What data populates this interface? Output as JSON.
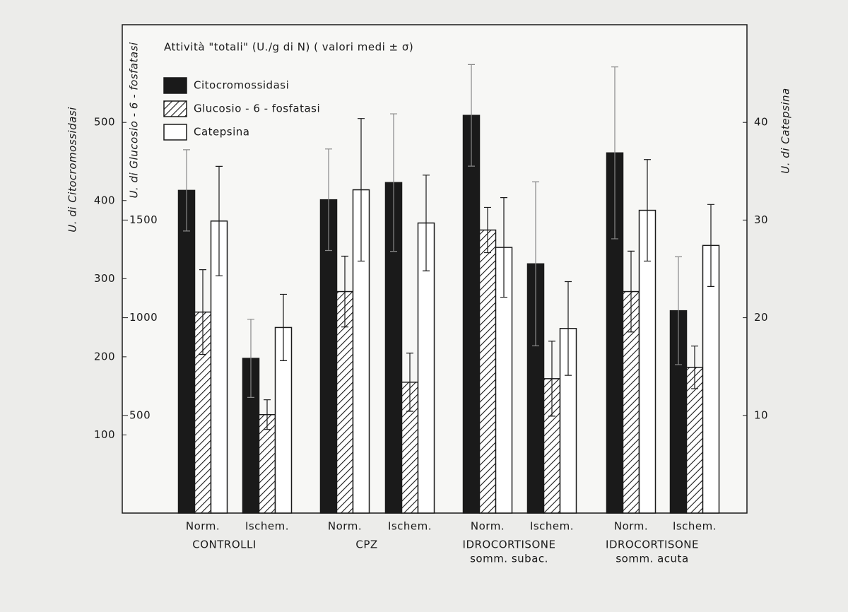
{
  "chart_data": {
    "type": "bar",
    "title": "Attività \"totali\" (U./g di N) ( valori medi ± σ)",
    "ylabel": "U. di Citocromossidasi",
    "y2label": "U. di Glucosio - 6 - fosfatasi",
    "y3label": "U. di Catepsina",
    "categories": [
      "Norm.",
      "Ischem.",
      "Norm.",
      "Ischem.",
      "Norm.",
      "Ischem.",
      "Norm.",
      "Ischem."
    ],
    "groups": [
      [
        "CONTROLLI"
      ],
      [
        "CPZ"
      ],
      [
        "IDROCORTISONE",
        "somm. subac."
      ],
      [
        "IDROCORTISONE",
        "somm. acuta"
      ]
    ],
    "series": [
      {
        "name": "Citocromossidasi",
        "color": "#1a1a1a",
        "axis": "y",
        "values": [
          413,
          198,
          401,
          423,
          509,
          319,
          461,
          259
        ],
        "errors": [
          52,
          50,
          65,
          88,
          65,
          105,
          110,
          69
        ]
      },
      {
        "name": "Glucosio - 6 - fosfatasi",
        "color": "#1a1a1a",
        "hatch": true,
        "axis": "y2",
        "values": [
          1029,
          504,
          1134,
          670,
          1449,
          688,
          1134,
          746
        ],
        "errors": [
          217,
          76,
          181,
          149,
          116,
          192,
          207,
          109
        ]
      },
      {
        "name": "Catepsina",
        "color": "#ffffff",
        "axis": "y3",
        "values": [
          29.9,
          19.0,
          33.1,
          29.7,
          27.2,
          18.9,
          31.0,
          27.4
        ],
        "errors": [
          5.6,
          3.4,
          7.3,
          4.9,
          5.1,
          4.8,
          5.2,
          4.2
        ]
      }
    ],
    "ylim": [
      0,
      625
    ],
    "yticks": [
      100,
      200,
      300,
      400,
      500
    ],
    "y2lim": [
      0,
      2500
    ],
    "y2ticks": [
      500,
      1000,
      1500
    ],
    "y3lim": [
      0,
      50
    ],
    "y3ticks": [
      10,
      20,
      30,
      40
    ],
    "grid": false
  }
}
